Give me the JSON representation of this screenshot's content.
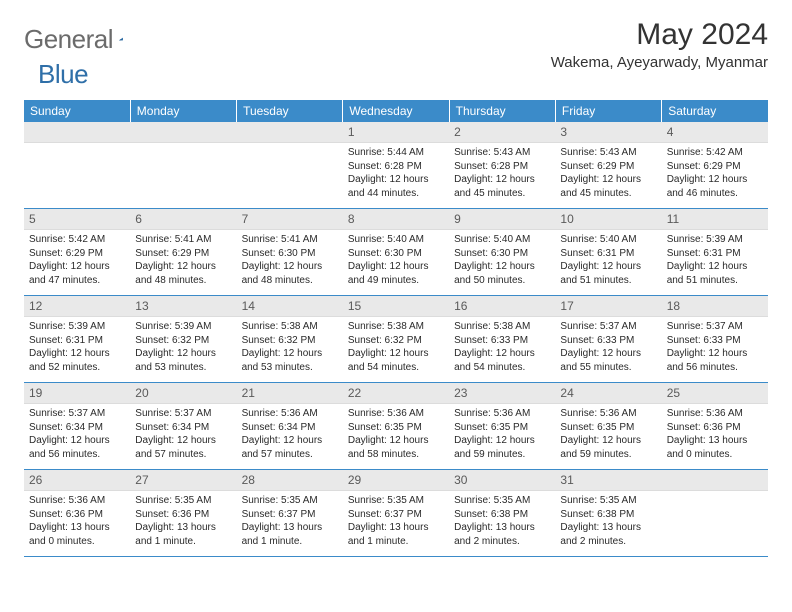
{
  "brand": {
    "word1": "General",
    "word2": "Blue"
  },
  "title": "May 2024",
  "location": "Wakema, Ayeyarwady, Myanmar",
  "colors": {
    "header_bg": "#3b8bc9",
    "header_text": "#ffffff",
    "daynum_bg": "#e9e9e9",
    "daynum_text": "#5a5a5a",
    "cell_text": "#2a2a2a",
    "rule": "#3b8bc9",
    "logo_gray": "#6b6b6b",
    "logo_blue": "#2f6fa8"
  },
  "weekdays": [
    "Sunday",
    "Monday",
    "Tuesday",
    "Wednesday",
    "Thursday",
    "Friday",
    "Saturday"
  ],
  "weeks": [
    [
      null,
      null,
      null,
      {
        "d": "1",
        "sr": "5:44 AM",
        "ss": "6:28 PM",
        "dl": "12 hours and 44 minutes."
      },
      {
        "d": "2",
        "sr": "5:43 AM",
        "ss": "6:28 PM",
        "dl": "12 hours and 45 minutes."
      },
      {
        "d": "3",
        "sr": "5:43 AM",
        "ss": "6:29 PM",
        "dl": "12 hours and 45 minutes."
      },
      {
        "d": "4",
        "sr": "5:42 AM",
        "ss": "6:29 PM",
        "dl": "12 hours and 46 minutes."
      }
    ],
    [
      {
        "d": "5",
        "sr": "5:42 AM",
        "ss": "6:29 PM",
        "dl": "12 hours and 47 minutes."
      },
      {
        "d": "6",
        "sr": "5:41 AM",
        "ss": "6:29 PM",
        "dl": "12 hours and 48 minutes."
      },
      {
        "d": "7",
        "sr": "5:41 AM",
        "ss": "6:30 PM",
        "dl": "12 hours and 48 minutes."
      },
      {
        "d": "8",
        "sr": "5:40 AM",
        "ss": "6:30 PM",
        "dl": "12 hours and 49 minutes."
      },
      {
        "d": "9",
        "sr": "5:40 AM",
        "ss": "6:30 PM",
        "dl": "12 hours and 50 minutes."
      },
      {
        "d": "10",
        "sr": "5:40 AM",
        "ss": "6:31 PM",
        "dl": "12 hours and 51 minutes."
      },
      {
        "d": "11",
        "sr": "5:39 AM",
        "ss": "6:31 PM",
        "dl": "12 hours and 51 minutes."
      }
    ],
    [
      {
        "d": "12",
        "sr": "5:39 AM",
        "ss": "6:31 PM",
        "dl": "12 hours and 52 minutes."
      },
      {
        "d": "13",
        "sr": "5:39 AM",
        "ss": "6:32 PM",
        "dl": "12 hours and 53 minutes."
      },
      {
        "d": "14",
        "sr": "5:38 AM",
        "ss": "6:32 PM",
        "dl": "12 hours and 53 minutes."
      },
      {
        "d": "15",
        "sr": "5:38 AM",
        "ss": "6:32 PM",
        "dl": "12 hours and 54 minutes."
      },
      {
        "d": "16",
        "sr": "5:38 AM",
        "ss": "6:33 PM",
        "dl": "12 hours and 54 minutes."
      },
      {
        "d": "17",
        "sr": "5:37 AM",
        "ss": "6:33 PM",
        "dl": "12 hours and 55 minutes."
      },
      {
        "d": "18",
        "sr": "5:37 AM",
        "ss": "6:33 PM",
        "dl": "12 hours and 56 minutes."
      }
    ],
    [
      {
        "d": "19",
        "sr": "5:37 AM",
        "ss": "6:34 PM",
        "dl": "12 hours and 56 minutes."
      },
      {
        "d": "20",
        "sr": "5:37 AM",
        "ss": "6:34 PM",
        "dl": "12 hours and 57 minutes."
      },
      {
        "d": "21",
        "sr": "5:36 AM",
        "ss": "6:34 PM",
        "dl": "12 hours and 57 minutes."
      },
      {
        "d": "22",
        "sr": "5:36 AM",
        "ss": "6:35 PM",
        "dl": "12 hours and 58 minutes."
      },
      {
        "d": "23",
        "sr": "5:36 AM",
        "ss": "6:35 PM",
        "dl": "12 hours and 59 minutes."
      },
      {
        "d": "24",
        "sr": "5:36 AM",
        "ss": "6:35 PM",
        "dl": "12 hours and 59 minutes."
      },
      {
        "d": "25",
        "sr": "5:36 AM",
        "ss": "6:36 PM",
        "dl": "13 hours and 0 minutes."
      }
    ],
    [
      {
        "d": "26",
        "sr": "5:36 AM",
        "ss": "6:36 PM",
        "dl": "13 hours and 0 minutes."
      },
      {
        "d": "27",
        "sr": "5:35 AM",
        "ss": "6:36 PM",
        "dl": "13 hours and 1 minute."
      },
      {
        "d": "28",
        "sr": "5:35 AM",
        "ss": "6:37 PM",
        "dl": "13 hours and 1 minute."
      },
      {
        "d": "29",
        "sr": "5:35 AM",
        "ss": "6:37 PM",
        "dl": "13 hours and 1 minute."
      },
      {
        "d": "30",
        "sr": "5:35 AM",
        "ss": "6:38 PM",
        "dl": "13 hours and 2 minutes."
      },
      {
        "d": "31",
        "sr": "5:35 AM",
        "ss": "6:38 PM",
        "dl": "13 hours and 2 minutes."
      },
      null
    ]
  ],
  "labels": {
    "sunrise": "Sunrise:",
    "sunset": "Sunset:",
    "daylight": "Daylight:"
  }
}
